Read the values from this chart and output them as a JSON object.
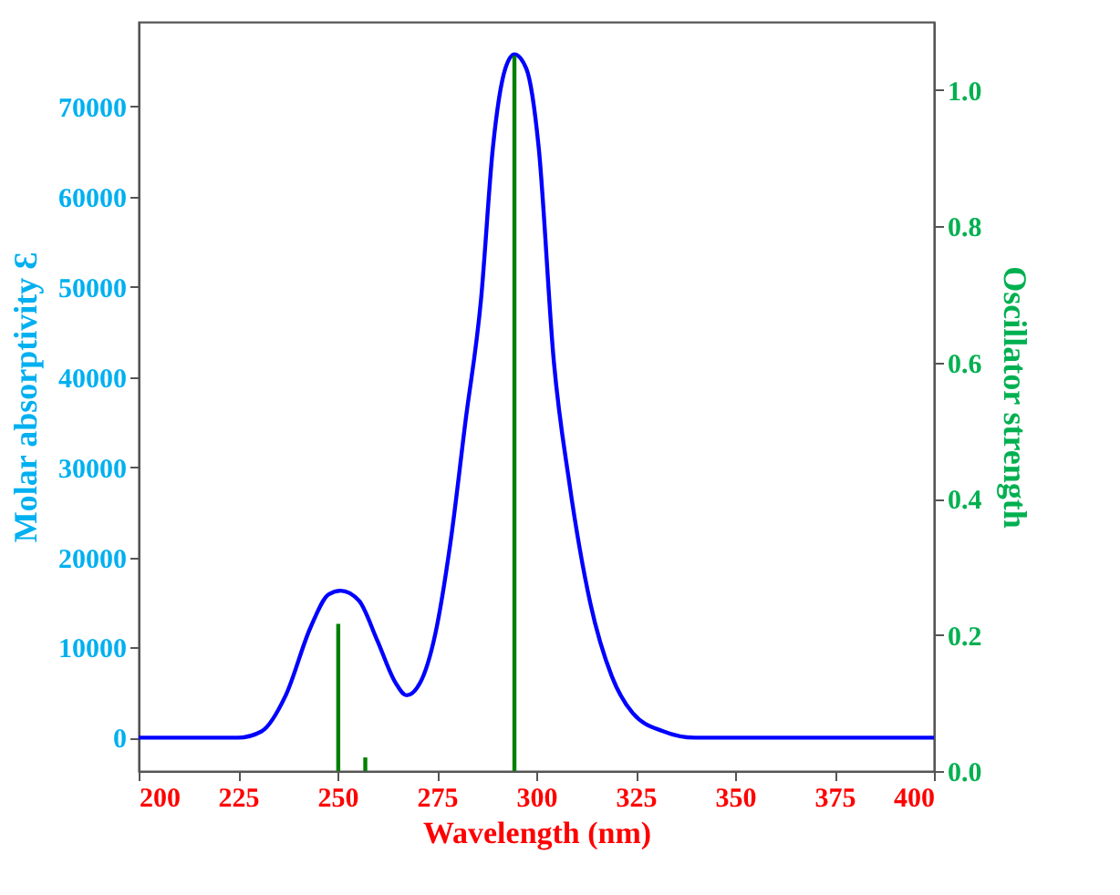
{
  "chart_data": {
    "type": "line",
    "xlabel": "Wavelength (nm)",
    "ylabel": "Molar absorptivity Ɛ",
    "y2label": "Oscillator strength",
    "xlim": [
      200,
      400
    ],
    "xticks": [
      200,
      225,
      250,
      275,
      300,
      325,
      350,
      375,
      400
    ],
    "ylim": [
      -3700,
      79400
    ],
    "yticks": [
      0,
      10000,
      20000,
      30000,
      40000,
      50000,
      60000,
      70000
    ],
    "y2lim": [
      0,
      1.1
    ],
    "y2ticks": [
      {
        "value": 0,
        "label": "0.0"
      },
      0.2,
      0.4,
      0.6,
      0.8,
      {
        "value": 1,
        "label": "1.0"
      }
    ],
    "grid": false,
    "series": [
      {
        "axis": "y",
        "color": "#0000ff",
        "x": [
          200,
          225,
          230.9,
          237.0,
          243.2,
          247.8,
          250.8,
          255.4,
          260.0,
          264.6,
          267.4,
          270.8,
          274.6,
          278.4,
          282.2,
          286.1,
          289.1,
          292.2,
          294.5,
          297.5,
          300.6,
          304.4,
          308.3,
          313.6,
          319.0,
          324.3,
          332.0,
          340,
          400
        ],
        "values": [
          0,
          0,
          700,
          4700,
          12200,
          15900,
          16300,
          15200,
          10800,
          6100,
          4700,
          6100,
          11500,
          21600,
          35100,
          48600,
          65500,
          74200,
          75800,
          74200,
          65500,
          41800,
          28300,
          14900,
          6800,
          2700,
          700,
          0,
          0
        ]
      },
      {
        "type": "bar",
        "axis": "y2",
        "color": "#008000",
        "x": [
          250.2,
          257.0,
          294.5
        ],
        "values": [
          0.216,
          0.02,
          1.05
        ]
      }
    ]
  }
}
